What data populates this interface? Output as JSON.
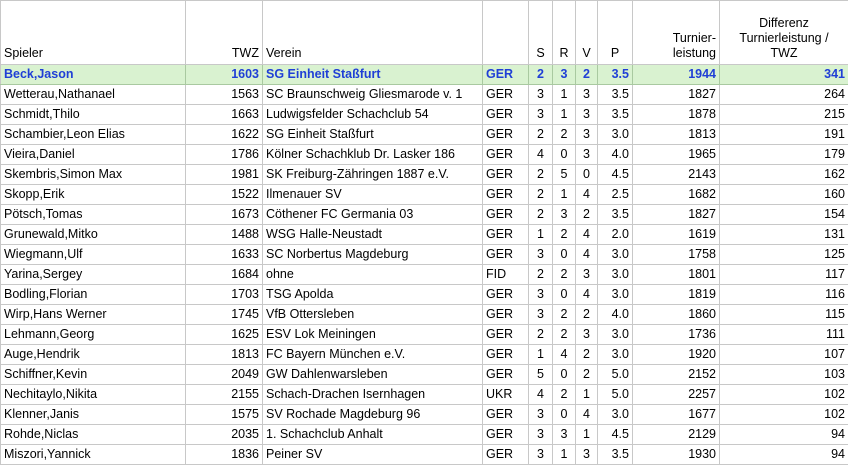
{
  "headers": {
    "spieler": "Spieler",
    "twz": "TWZ",
    "verein": "Verein",
    "fed": "",
    "s": "S",
    "r": "R",
    "v": "V",
    "p": "P",
    "tl": "Turnier-\nleistung",
    "diff": "Differenz\nTurnierleistung /\nTWZ"
  },
  "rows": [
    {
      "name": "Beck,Jason",
      "twz": "1603",
      "club": "SG Einheit Staßfurt",
      "fed": "GER",
      "s": "2",
      "r": "3",
      "v": "2",
      "p": "3.5",
      "tl": "1944",
      "diff": "341"
    },
    {
      "name": "Wetterau,Nathanael",
      "twz": "1563",
      "club": "SC Braunschweig Gliesmarode v. 1",
      "fed": "GER",
      "s": "3",
      "r": "1",
      "v": "3",
      "p": "3.5",
      "tl": "1827",
      "diff": "264"
    },
    {
      "name": "Schmidt,Thilo",
      "twz": "1663",
      "club": "Ludwigsfelder Schachclub 54",
      "fed": "GER",
      "s": "3",
      "r": "1",
      "v": "3",
      "p": "3.5",
      "tl": "1878",
      "diff": "215"
    },
    {
      "name": "Schambier,Leon Elias",
      "twz": "1622",
      "club": "SG Einheit Staßfurt",
      "fed": "GER",
      "s": "2",
      "r": "2",
      "v": "3",
      "p": "3.0",
      "tl": "1813",
      "diff": "191"
    },
    {
      "name": "Vieira,Daniel",
      "twz": "1786",
      "club": "Kölner Schachklub Dr. Lasker 186",
      "fed": "GER",
      "s": "4",
      "r": "0",
      "v": "3",
      "p": "4.0",
      "tl": "1965",
      "diff": "179"
    },
    {
      "name": "Skembris,Simon Max",
      "twz": "1981",
      "club": "SK Freiburg-Zähringen 1887 e.V.",
      "fed": "GER",
      "s": "2",
      "r": "5",
      "v": "0",
      "p": "4.5",
      "tl": "2143",
      "diff": "162"
    },
    {
      "name": "Skopp,Erik",
      "twz": "1522",
      "club": "Ilmenauer SV",
      "fed": "GER",
      "s": "2",
      "r": "1",
      "v": "4",
      "p": "2.5",
      "tl": "1682",
      "diff": "160"
    },
    {
      "name": "Pötsch,Tomas",
      "twz": "1673",
      "club": "Cöthener FC Germania 03",
      "fed": "GER",
      "s": "2",
      "r": "3",
      "v": "2",
      "p": "3.5",
      "tl": "1827",
      "diff": "154"
    },
    {
      "name": "Grunewald,Mitko",
      "twz": "1488",
      "club": "WSG Halle-Neustadt",
      "fed": "GER",
      "s": "1",
      "r": "2",
      "v": "4",
      "p": "2.0",
      "tl": "1619",
      "diff": "131"
    },
    {
      "name": "Wiegmann,Ulf",
      "twz": "1633",
      "club": "SC Norbertus Magdeburg",
      "fed": "GER",
      "s": "3",
      "r": "0",
      "v": "4",
      "p": "3.0",
      "tl": "1758",
      "diff": "125"
    },
    {
      "name": "Yarina,Sergey",
      "twz": "1684",
      "club": "ohne",
      "fed": "FID",
      "s": "2",
      "r": "2",
      "v": "3",
      "p": "3.0",
      "tl": "1801",
      "diff": "117"
    },
    {
      "name": "Bodling,Florian",
      "twz": "1703",
      "club": "TSG Apolda",
      "fed": "GER",
      "s": "3",
      "r": "0",
      "v": "4",
      "p": "3.0",
      "tl": "1819",
      "diff": "116"
    },
    {
      "name": "Wirp,Hans Werner",
      "twz": "1745",
      "club": "VfB Ottersleben",
      "fed": "GER",
      "s": "3",
      "r": "2",
      "v": "2",
      "p": "4.0",
      "tl": "1860",
      "diff": "115"
    },
    {
      "name": "Lehmann,Georg",
      "twz": "1625",
      "club": "ESV Lok Meiningen",
      "fed": "GER",
      "s": "2",
      "r": "2",
      "v": "3",
      "p": "3.0",
      "tl": "1736",
      "diff": "111"
    },
    {
      "name": "Auge,Hendrik",
      "twz": "1813",
      "club": "FC Bayern München e.V.",
      "fed": "GER",
      "s": "1",
      "r": "4",
      "v": "2",
      "p": "3.0",
      "tl": "1920",
      "diff": "107"
    },
    {
      "name": "Schiffner,Kevin",
      "twz": "2049",
      "club": "GW Dahlenwarsleben",
      "fed": "GER",
      "s": "5",
      "r": "0",
      "v": "2",
      "p": "5.0",
      "tl": "2152",
      "diff": "103"
    },
    {
      "name": "Nechitaylo,Nikita",
      "twz": "2155",
      "club": "Schach-Drachen Isernhagen",
      "fed": "UKR",
      "s": "4",
      "r": "2",
      "v": "1",
      "p": "5.0",
      "tl": "2257",
      "diff": "102"
    },
    {
      "name": "Klenner,Janis",
      "twz": "1575",
      "club": "SV Rochade Magdeburg 96",
      "fed": "GER",
      "s": "3",
      "r": "0",
      "v": "4",
      "p": "3.0",
      "tl": "1677",
      "diff": "102"
    },
    {
      "name": "Rohde,Niclas",
      "twz": "2035",
      "club": "1. Schachclub Anhalt",
      "fed": "GER",
      "s": "3",
      "r": "3",
      "v": "1",
      "p": "4.5",
      "tl": "2129",
      "diff": "94"
    },
    {
      "name": "Miszori,Yannick",
      "twz": "1836",
      "club": "Peiner SV",
      "fed": "GER",
      "s": "3",
      "r": "1",
      "v": "3",
      "p": "3.5",
      "tl": "1930",
      "diff": "94"
    }
  ],
  "highlight_row_color": "#d9f2d0",
  "highlight_text_color": "#1f3fd6"
}
